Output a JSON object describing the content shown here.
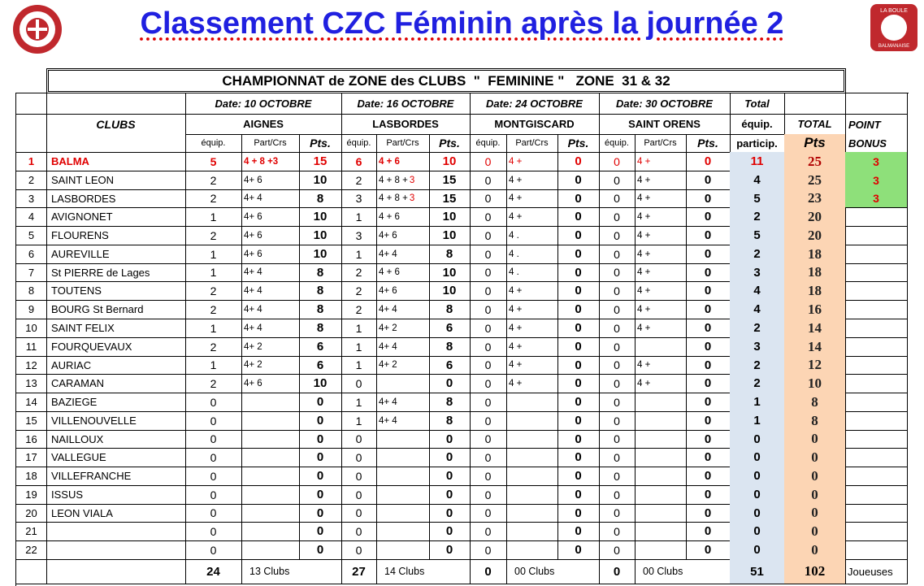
{
  "header": {
    "title": "Classement CZC Féminin après la journée 2",
    "logo_text": [
      "LA BOULE",
      "BALMANAISE"
    ]
  },
  "table": {
    "title": "CHAMPIONNAT de ZONE des CLUBS  \"  FEMININE \"   ZONE  31 & 32",
    "dates": [
      "Date: 10  OCTOBRE",
      "Date: 16 OCTOBRE",
      "Date:  24 OCTOBRE",
      "Date: 30  OCTOBRE"
    ],
    "total_label": "Total",
    "clubs_label": "CLUBS",
    "venues": [
      "AIGNES",
      "LASBORDES",
      "MONTGISCARD",
      "SAINT ORENS"
    ],
    "top_labels": [
      "équip.",
      "TOTAL",
      "POINT"
    ],
    "sub_headers": [
      "équip.",
      "Part/Crs",
      "Pts.",
      "équip.",
      "Part/Crs",
      "Pts.",
      "équip.",
      "Part/Crs",
      "Pts.",
      "équip.",
      "Part/Crs",
      "Pts.",
      "particip.",
      "Pts",
      "BONUS"
    ],
    "rows": [
      [
        1,
        "BALMA",
        5,
        "4 + 8 +3",
        15,
        6,
        "4 +  6",
        10,
        0,
        "4 +",
        0,
        0,
        "4 +",
        0,
        11,
        25,
        3
      ],
      [
        2,
        "SAINT LEON",
        2,
        "4+ 6",
        10,
        2,
        [
          "4 + 8 +",
          "3"
        ],
        15,
        0,
        "4 +",
        0,
        0,
        "4 +",
        0,
        4,
        25,
        3
      ],
      [
        3,
        "LASBORDES",
        2,
        "4+ 4",
        8,
        3,
        [
          "4 + 8 +",
          "3"
        ],
        15,
        0,
        "4 +",
        0,
        0,
        "4 +",
        0,
        5,
        23,
        3
      ],
      [
        4,
        "AVIGNONET",
        1,
        "4+ 6",
        10,
        1,
        "4 + 6",
        10,
        0,
        "4 +",
        0,
        0,
        "4 +",
        0,
        2,
        20,
        null
      ],
      [
        5,
        "FLOURENS",
        2,
        "4+ 6",
        10,
        3,
        "4+ 6",
        10,
        0,
        "4 .",
        0,
        0,
        "4 +",
        0,
        5,
        20,
        null
      ],
      [
        6,
        "AUREVILLE",
        1,
        "4+ 6",
        10,
        1,
        "4+ 4",
        8,
        0,
        "4 .",
        0,
        0,
        "4 +",
        0,
        2,
        18,
        null
      ],
      [
        7,
        "St PIERRE de Lages",
        1,
        "4+ 4",
        8,
        2,
        "4 + 6",
        10,
        0,
        "4 .",
        0,
        0,
        "4 +",
        0,
        3,
        18,
        null
      ],
      [
        8,
        "TOUTENS",
        2,
        "4+ 4",
        8,
        2,
        "4+ 6",
        10,
        0,
        "4 +",
        0,
        0,
        "4 +",
        0,
        4,
        18,
        null
      ],
      [
        9,
        "BOURG St Bernard",
        2,
        "4+ 4",
        8,
        2,
        "4+ 4",
        8,
        0,
        "4 +",
        0,
        0,
        "4 +",
        0,
        4,
        16,
        null
      ],
      [
        10,
        "SAINT FELIX",
        1,
        "4+ 4",
        8,
        1,
        "4+ 2",
        6,
        0,
        "4 +",
        0,
        0,
        "4 +",
        0,
        2,
        14,
        null
      ],
      [
        11,
        "FOURQUEVAUX",
        2,
        "4+ 2",
        6,
        1,
        "4+ 4",
        8,
        0,
        "4 +",
        0,
        0,
        null,
        0,
        3,
        14,
        null
      ],
      [
        12,
        "AURIAC",
        1,
        "4+ 2",
        6,
        1,
        "4+ 2",
        6,
        0,
        "4 +",
        0,
        0,
        "4 +",
        0,
        2,
        12,
        null
      ],
      [
        13,
        "CARAMAN",
        2,
        "4+ 6",
        10,
        0,
        null,
        0,
        0,
        "4 +",
        0,
        0,
        "4 +",
        0,
        2,
        10,
        null
      ],
      [
        14,
        "BAZIEGE",
        0,
        null,
        0,
        1,
        "4+ 4",
        8,
        0,
        null,
        0,
        0,
        null,
        0,
        1,
        8,
        null
      ],
      [
        15,
        "VILLENOUVELLE",
        0,
        null,
        0,
        1,
        "4+ 4",
        8,
        0,
        null,
        0,
        0,
        null,
        0,
        1,
        8,
        null
      ],
      [
        16,
        "NAILLOUX",
        0,
        null,
        0,
        0,
        null,
        0,
        0,
        null,
        0,
        0,
        null,
        0,
        0,
        0,
        null
      ],
      [
        17,
        "VALLEGUE",
        0,
        null,
        0,
        0,
        null,
        0,
        0,
        null,
        0,
        0,
        null,
        0,
        0,
        0,
        null
      ],
      [
        18,
        "VILLEFRANCHE",
        0,
        null,
        0,
        0,
        null,
        0,
        0,
        null,
        0,
        0,
        null,
        0,
        0,
        0,
        null
      ],
      [
        19,
        "ISSUS",
        0,
        null,
        0,
        0,
        null,
        0,
        0,
        null,
        0,
        0,
        null,
        0,
        0,
        0,
        null
      ],
      [
        20,
        "LEON VIALA",
        0,
        null,
        0,
        0,
        null,
        0,
        0,
        null,
        0,
        0,
        null,
        0,
        0,
        0,
        null
      ],
      [
        21,
        null,
        0,
        null,
        0,
        0,
        null,
        0,
        0,
        null,
        0,
        0,
        null,
        0,
        0,
        0,
        null
      ],
      [
        22,
        null,
        0,
        null,
        0,
        0,
        null,
        0,
        0,
        null,
        0,
        0,
        null,
        0,
        0,
        0,
        null
      ]
    ],
    "totals": [
      24,
      "13 Clubs",
      27,
      "14 Clubs",
      0,
      "00 Clubs",
      0,
      "00 Clubs",
      51,
      102,
      "Joueuses"
    ]
  }
}
